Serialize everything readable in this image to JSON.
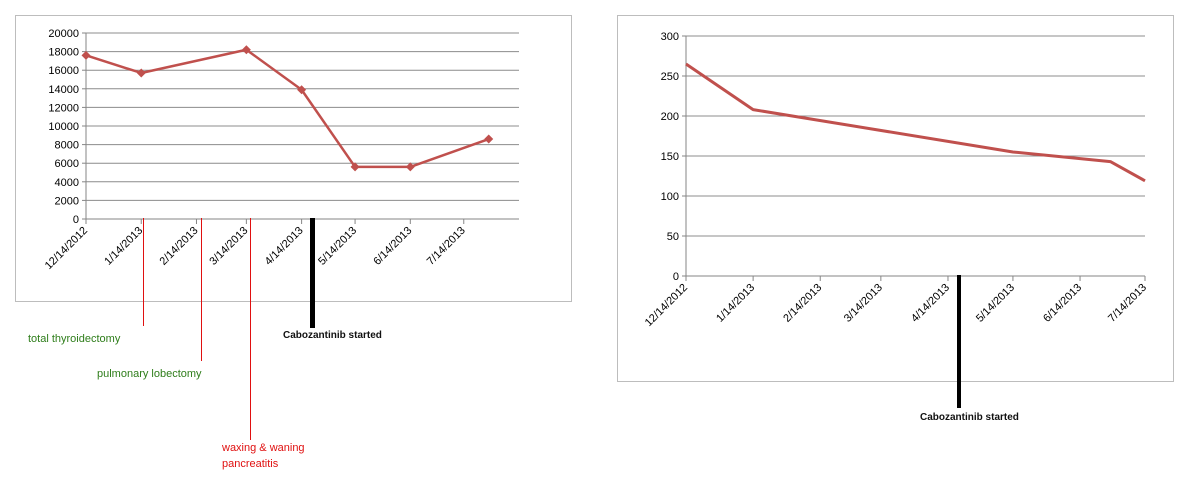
{
  "colors": {
    "series": "#c0504d",
    "grid": "#8c8c8c",
    "axis": "#868686",
    "annotation_green": "#2e7d1a",
    "annotation_red": "#e01010",
    "annotation_black": "#000000"
  },
  "chart_data": [
    {
      "type": "line",
      "title": "",
      "xlabel": "",
      "ylabel": "",
      "ylim": [
        0,
        20000
      ],
      "yticks": [
        "0",
        "2000",
        "4000",
        "6000",
        "8000",
        "10000",
        "12000",
        "14000",
        "16000",
        "18000",
        "20000"
      ],
      "xticks": [
        "12/14/2012",
        "1/14/2013",
        "2/14/2013",
        "3/14/2013",
        "4/14/2013",
        "5/14/2013",
        "6/14/2013",
        "7/14/2013"
      ],
      "grid": true,
      "series": [
        {
          "marker": "diamond",
          "x": [
            "12/14/2012",
            "1/14/2013",
            "3/14/2013",
            "4/14/2013",
            "5/14/2013",
            "6/14/2013",
            "7/28/2013"
          ],
          "values": [
            17600,
            15700,
            18200,
            13900,
            5600,
            5600,
            8600
          ]
        }
      ],
      "annotations": [
        {
          "label": "total thyroidectomy",
          "color": "green"
        },
        {
          "label": "pulmonary lobectomy",
          "color": "green"
        },
        {
          "label": "waxing & waning pancreatitis",
          "lines": [
            "waxing & waning",
            "pancreatitis"
          ],
          "color": "red"
        },
        {
          "label": "Cabozantinib started",
          "color": "black"
        }
      ]
    },
    {
      "type": "line",
      "title": "",
      "xlabel": "",
      "ylabel": "",
      "ylim": [
        0,
        300
      ],
      "yticks": [
        "0",
        "50",
        "100",
        "150",
        "200",
        "250",
        "300"
      ],
      "xticks": [
        "12/14/2012",
        "1/14/2013",
        "2/14/2013",
        "3/14/2013",
        "4/14/2013",
        "5/14/2013",
        "6/14/2013",
        "7/14/2013"
      ],
      "grid": true,
      "series": [
        {
          "marker": "none",
          "x": [
            "12/14/2012",
            "1/14/2013",
            "5/14/2013",
            "6/28/2013",
            "7/14/2013"
          ],
          "values": [
            265,
            208,
            155,
            143,
            119
          ]
        }
      ],
      "annotations": [
        {
          "label": "Cabozantinib started",
          "color": "black"
        }
      ]
    }
  ]
}
